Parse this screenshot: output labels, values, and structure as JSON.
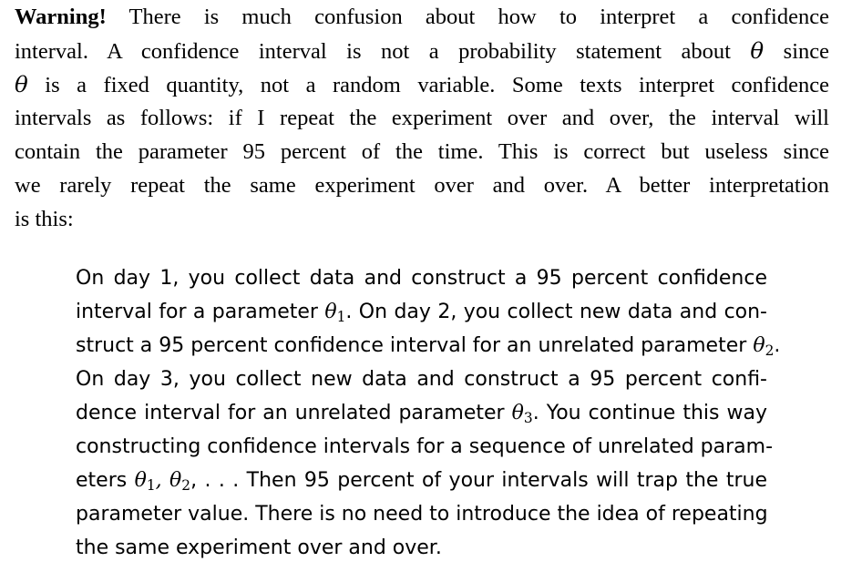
{
  "warning": {
    "bold_word": "Warning!",
    "lines": [
      " There is much confusion about how to interpret a confidence",
      "interval. A confidence interval is not a probability statement about",
      "since",
      "is a fixed quantity, not a random variable. Some texts interpret confidence",
      "intervals as follows: if I repeat the experiment over and over, the interval will",
      "contain the parameter 95 percent of the time. This is correct but useless since",
      "we rarely repeat the same experiment over and over. A better interpretation",
      "is this:"
    ]
  },
  "symbols": {
    "theta": "θ",
    "sub1": "1",
    "sub2": "2",
    "sub3": "3",
    "ellipsis": ", . . ."
  },
  "interpretation": {
    "l1": "On day 1, you collect data and construct a 95 percent confidence",
    "l2a": "interval for a parameter",
    "l2b": ". On day 2, you collect new data and con-",
    "l3a": "struct a 95 percent confidence interval for an unrelated parameter",
    "l3b": ".",
    "l4": "On day 3, you collect new data and construct a 95 percent confi-",
    "l5a": "dence interval for an unrelated parameter",
    "l5b": ". You continue this way",
    "l6": "constructing confidence intervals for a sequence of unrelated param-",
    "l7a": "eters",
    "l7b": "Then 95 percent of your intervals will trap the true",
    "l8": "parameter value. There is no need to introduce the idea of repeating",
    "l9": "the same experiment over and over."
  }
}
